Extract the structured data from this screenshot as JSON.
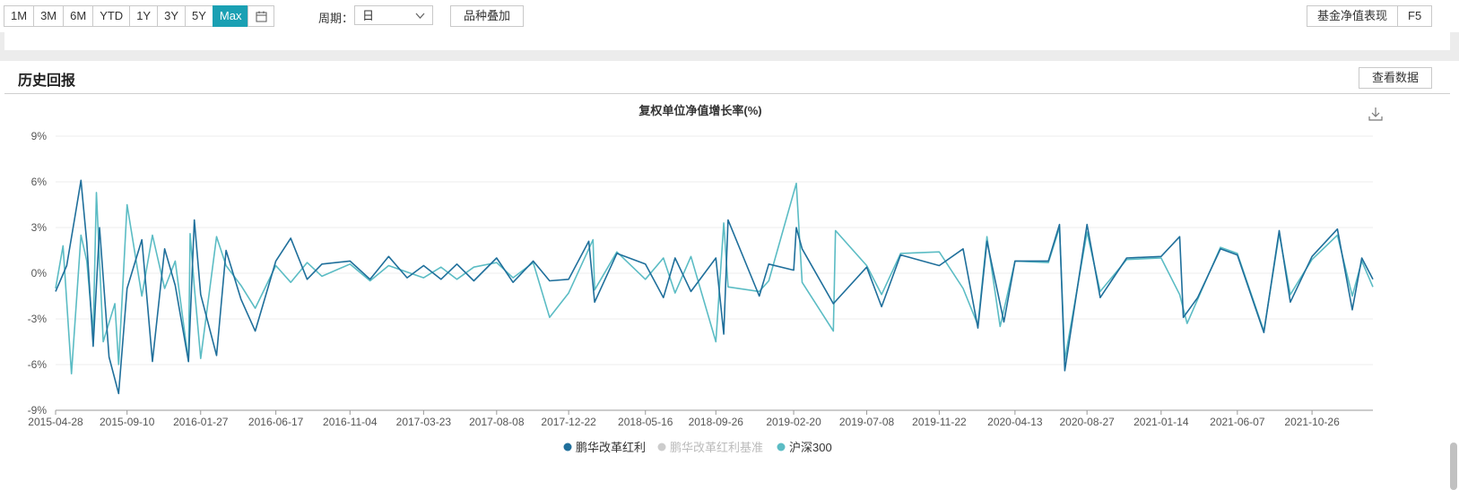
{
  "toolbar": {
    "ranges": [
      "1M",
      "3M",
      "6M",
      "YTD",
      "1Y",
      "3Y",
      "5Y",
      "Max"
    ],
    "active_range": "Max",
    "calendar_icon": "calendar-icon",
    "period_label": "周期：",
    "period_value": "日",
    "overlay_label": "品种叠加",
    "right_label": "基金净值表现",
    "right_key": "F5"
  },
  "panel": {
    "title": "历史回报",
    "view_data_label": "查看数据",
    "download_icon": "download-icon"
  },
  "colors": {
    "fund": "#1f6f9b",
    "benchmark": "#cccccc",
    "index": "#5bbcc4",
    "accent": "#1aa0b3"
  },
  "chart_data": {
    "type": "line",
    "title": "复权单位净值增长率(%)",
    "ylim": [
      -9,
      9
    ],
    "yticks": [
      -9,
      -6,
      -3,
      0,
      3,
      6,
      9
    ],
    "ytick_labels": [
      "-9%",
      "-6%",
      "-3%",
      "0%",
      "3%",
      "6%",
      "9%"
    ],
    "xlim": [
      "2015-04-28",
      "2022-02-18"
    ],
    "xtick_labels": [
      "2015-04-28",
      "2015-09-10",
      "2016-01-27",
      "2016-06-17",
      "2016-11-04",
      "2017-03-23",
      "2017-08-08",
      "2017-12-22",
      "2018-05-16",
      "2018-09-26",
      "2019-02-20",
      "2019-07-08",
      "2019-11-22",
      "2020-04-13",
      "2020-08-27",
      "2021-01-14",
      "2021-06-07",
      "2021-10-26"
    ],
    "grid": true,
    "legend_position": "bottom-center",
    "series": [
      {
        "name": "鹏华改革红利",
        "x": [
          "2015-04-28",
          "2015-05-19",
          "2015-06-05",
          "2015-06-15",
          "2015-06-26",
          "2015-07-08",
          "2015-07-20",
          "2015-08-07",
          "2015-08-25",
          "2015-09-10",
          "2015-10-08",
          "2015-10-28",
          "2015-11-20",
          "2015-12-10",
          "2016-01-04",
          "2016-01-15",
          "2016-01-27",
          "2016-02-26",
          "2016-03-15",
          "2016-04-12",
          "2016-05-09",
          "2016-06-17",
          "2016-07-15",
          "2016-08-15",
          "2016-09-12",
          "2016-11-04",
          "2016-12-12",
          "2017-01-16",
          "2017-02-20",
          "2017-03-23",
          "2017-04-25",
          "2017-05-25",
          "2017-06-26",
          "2017-08-08",
          "2017-09-08",
          "2017-10-16",
          "2017-11-16",
          "2017-12-22",
          "2018-01-29",
          "2018-02-09",
          "2018-03-23",
          "2018-05-16",
          "2018-06-19",
          "2018-07-11",
          "2018-08-10",
          "2018-09-26",
          "2018-10-11",
          "2018-10-19",
          "2018-12-17",
          "2019-01-04",
          "2019-02-20",
          "2019-02-25",
          "2019-03-08",
          "2019-05-06",
          "2019-07-08",
          "2019-08-05",
          "2019-09-10",
          "2019-11-22",
          "2020-01-06",
          "2020-02-03",
          "2020-02-20",
          "2020-03-23",
          "2020-04-13",
          "2020-06-15",
          "2020-07-06",
          "2020-07-16",
          "2020-08-27",
          "2020-09-21",
          "2020-11-10",
          "2021-01-14",
          "2021-02-18",
          "2021-02-25",
          "2021-03-24",
          "2021-05-06",
          "2021-06-07",
          "2021-07-27",
          "2021-08-25",
          "2021-09-15",
          "2021-10-26",
          "2021-12-13",
          "2022-01-10",
          "2022-01-28",
          "2022-02-18"
        ],
        "values": [
          -1.2,
          0.5,
          4.0,
          6.1,
          2.0,
          -4.8,
          3.0,
          -5.5,
          -7.9,
          -1.0,
          2.2,
          -5.8,
          1.6,
          -0.8,
          -5.8,
          3.5,
          -1.4,
          -5.4,
          1.5,
          -1.7,
          -3.8,
          0.8,
          2.3,
          -0.4,
          0.6,
          0.8,
          -0.4,
          1.1,
          -0.3,
          0.5,
          -0.4,
          0.6,
          -0.5,
          1.0,
          -0.6,
          0.8,
          -0.5,
          -0.4,
          2.1,
          -1.9,
          1.3,
          0.6,
          -1.6,
          1.0,
          -1.2,
          1.0,
          -4.0,
          3.5,
          -1.5,
          0.6,
          0.2,
          3.0,
          1.6,
          -2.0,
          0.4,
          -2.2,
          1.2,
          0.5,
          1.6,
          -3.6,
          2.1,
          -3.2,
          0.8,
          0.8,
          3.2,
          -6.4,
          3.2,
          -1.6,
          1.0,
          1.1,
          2.4,
          -2.9,
          -1.6,
          1.6,
          1.2,
          -3.9,
          2.8,
          -1.9,
          1.1,
          2.9,
          -2.4,
          1.0,
          -0.4
        ]
      },
      {
        "name": "鹏华改革红利基准",
        "x": [],
        "values": []
      },
      {
        "name": "沪深300",
        "x": [
          "2015-04-28",
          "2015-05-12",
          "2015-05-28",
          "2015-06-15",
          "2015-06-26",
          "2015-07-08",
          "2015-07-14",
          "2015-07-27",
          "2015-08-18",
          "2015-08-25",
          "2015-09-10",
          "2015-10-08",
          "2015-10-28",
          "2015-11-20",
          "2015-12-10",
          "2016-01-04",
          "2016-01-07",
          "2016-01-15",
          "2016-01-27",
          "2016-02-26",
          "2016-03-15",
          "2016-04-12",
          "2016-05-09",
          "2016-06-17",
          "2016-07-15",
          "2016-08-15",
          "2016-09-12",
          "2016-11-04",
          "2016-12-12",
          "2017-01-16",
          "2017-03-23",
          "2017-04-25",
          "2017-05-25",
          "2017-06-26",
          "2017-08-08",
          "2017-09-08",
          "2017-10-16",
          "2017-11-16",
          "2017-12-22",
          "2018-02-06",
          "2018-02-09",
          "2018-03-23",
          "2018-05-16",
          "2018-06-19",
          "2018-07-11",
          "2018-08-10",
          "2018-09-26",
          "2018-10-11",
          "2018-10-19",
          "2018-12-17",
          "2019-01-04",
          "2019-02-25",
          "2019-03-08",
          "2019-05-06",
          "2019-05-10",
          "2019-07-08",
          "2019-08-05",
          "2019-09-10",
          "2019-11-22",
          "2020-01-06",
          "2020-02-03",
          "2020-02-20",
          "2020-03-16",
          "2020-04-13",
          "2020-06-15",
          "2020-07-06",
          "2020-07-16",
          "2020-08-27",
          "2020-09-21",
          "2020-11-10",
          "2021-01-14",
          "2021-02-18",
          "2021-03-04",
          "2021-05-06",
          "2021-06-07",
          "2021-07-27",
          "2021-08-25",
          "2021-09-15",
          "2021-10-26",
          "2021-12-13",
          "2022-01-10",
          "2022-01-28",
          "2022-02-18"
        ],
        "values": [
          -1.0,
          1.8,
          -6.6,
          2.5,
          0.8,
          -4.0,
          5.3,
          -4.5,
          -2.0,
          -6.0,
          4.5,
          -1.5,
          2.5,
          -1.0,
          0.8,
          -5.8,
          2.6,
          -0.9,
          -5.6,
          2.4,
          0.5,
          -0.8,
          -2.3,
          0.5,
          -0.6,
          0.7,
          -0.2,
          0.6,
          -0.5,
          0.5,
          -0.3,
          0.4,
          -0.4,
          0.4,
          0.7,
          -0.3,
          0.7,
          -2.9,
          -1.3,
          2.2,
          -1.1,
          1.4,
          -0.4,
          1.0,
          -1.3,
          1.1,
          -4.5,
          3.3,
          -0.9,
          -1.2,
          -0.5,
          5.9,
          -0.6,
          -3.8,
          2.8,
          0.5,
          -1.4,
          1.3,
          1.4,
          -1.0,
          -3.4,
          2.4,
          -3.5,
          0.8,
          0.7,
          3.0,
          -5.7,
          2.7,
          -1.2,
          0.9,
          1.0,
          -1.4,
          -3.3,
          1.7,
          1.3,
          -3.8,
          2.6,
          -1.4,
          0.9,
          2.5,
          -1.5,
          0.8,
          -0.9
        ]
      }
    ]
  }
}
